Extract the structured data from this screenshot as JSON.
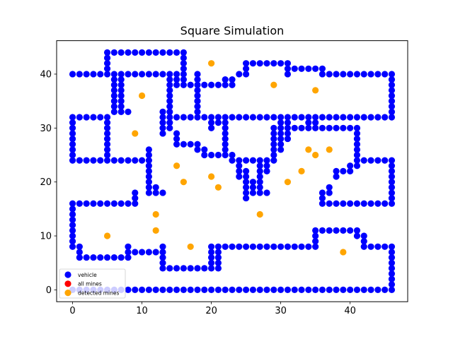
{
  "chart_data": {
    "type": "scatter",
    "title": "Square Simulation",
    "xlabel": "",
    "ylabel": "",
    "xlim": [
      -2.3,
      48.3
    ],
    "ylim": [
      -2.2,
      46.2
    ],
    "xticks": [
      0,
      10,
      20,
      30,
      40
    ],
    "yticks": [
      0,
      10,
      20,
      30,
      40
    ],
    "grid": false,
    "legend_position": "lower-left",
    "colors": {
      "vehicle": "#0000ff",
      "all_mines": "#ff0000",
      "detected_mines": "#ffa500"
    },
    "series": [
      {
        "name": "vehicle",
        "segments": [
          [
            [
              0,
              40
            ],
            [
              5,
              40
            ]
          ],
          [
            [
              5,
              40
            ],
            [
              5,
              44
            ]
          ],
          [
            [
              5,
              44
            ],
            [
              16,
              44
            ]
          ],
          [
            [
              16,
              44
            ],
            [
              16,
              38
            ]
          ],
          [
            [
              7,
              40
            ],
            [
              15,
              40
            ]
          ],
          [
            [
              15,
              40
            ],
            [
              15,
              38
            ]
          ],
          [
            [
              14,
              40
            ],
            [
              14,
              30
            ]
          ],
          [
            [
              16,
              38
            ],
            [
              18,
              38
            ]
          ],
          [
            [
              18,
              40
            ],
            [
              18,
              32
            ]
          ],
          [
            [
              18,
              38
            ],
            [
              23,
              38
            ]
          ],
          [
            [
              22,
              38
            ],
            [
              22,
              39
            ]
          ],
          [
            [
              23,
              39
            ],
            [
              24,
              40
            ]
          ],
          [
            [
              24,
              40
            ],
            [
              25,
              40
            ]
          ],
          [
            [
              25,
              40
            ],
            [
              25,
              42
            ]
          ],
          [
            [
              25,
              42
            ],
            [
              31,
              42
            ]
          ],
          [
            [
              31,
              42
            ],
            [
              31,
              40
            ]
          ],
          [
            [
              31,
              41
            ],
            [
              36,
              41
            ]
          ],
          [
            [
              36,
              41
            ],
            [
              36,
              40
            ]
          ],
          [
            [
              36,
              40
            ],
            [
              46,
              40
            ]
          ],
          [
            [
              46,
              40
            ],
            [
              46,
              32
            ]
          ],
          [
            [
              0,
              32
            ],
            [
              4,
              32
            ]
          ],
          [
            [
              0,
              32
            ],
            [
              0,
              24
            ]
          ],
          [
            [
              0,
              24
            ],
            [
              5,
              24
            ]
          ],
          [
            [
              5,
              24
            ],
            [
              11,
              24
            ]
          ],
          [
            [
              5,
              32
            ],
            [
              5,
              24
            ]
          ],
          [
            [
              6,
              40
            ],
            [
              6,
              33
            ]
          ],
          [
            [
              7,
              40
            ],
            [
              7,
              33
            ]
          ],
          [
            [
              6,
              33
            ],
            [
              8,
              33
            ]
          ],
          [
            [
              7,
              40
            ],
            [
              7,
              39
            ]
          ],
          [
            [
              11,
              26
            ],
            [
              11,
              18
            ]
          ],
          [
            [
              11,
              18
            ],
            [
              13,
              18
            ]
          ],
          [
            [
              12,
              18
            ],
            [
              12,
              19
            ]
          ],
          [
            [
              9,
              18
            ],
            [
              9,
              16
            ]
          ],
          [
            [
              0,
              16
            ],
            [
              9,
              16
            ]
          ],
          [
            [
              0,
              16
            ],
            [
              0,
              8
            ]
          ],
          [
            [
              0,
              8
            ],
            [
              1,
              8
            ]
          ],
          [
            [
              1,
              8
            ],
            [
              1,
              6
            ]
          ],
          [
            [
              1,
              6
            ],
            [
              7,
              6
            ]
          ],
          [
            [
              8,
              6
            ],
            [
              8,
              8
            ]
          ],
          [
            [
              8,
              7
            ],
            [
              12,
              7
            ]
          ],
          [
            [
              13,
              8
            ],
            [
              13,
              4
            ]
          ],
          [
            [
              13,
              4
            ],
            [
              20,
              4
            ]
          ],
          [
            [
              20,
              4
            ],
            [
              20,
              8
            ]
          ],
          [
            [
              21,
              8
            ],
            [
              21,
              4
            ]
          ],
          [
            [
              21,
              8
            ],
            [
              35,
              8
            ]
          ],
          [
            [
              35,
              8
            ],
            [
              35,
              11
            ]
          ],
          [
            [
              35,
              11
            ],
            [
              41,
              11
            ]
          ],
          [
            [
              41,
              11
            ],
            [
              41,
              10
            ]
          ],
          [
            [
              42,
              10
            ],
            [
              42,
              8
            ]
          ],
          [
            [
              42,
              8
            ],
            [
              46,
              8
            ]
          ],
          [
            [
              46,
              8
            ],
            [
              46,
              0
            ]
          ],
          [
            [
              0,
              0
            ],
            [
              46,
              0
            ]
          ],
          [
            [
              13,
              33
            ],
            [
              13,
              29
            ]
          ],
          [
            [
              14,
              32
            ],
            [
              46,
              32
            ]
          ],
          [
            [
              20,
              32
            ],
            [
              20,
              30
            ]
          ],
          [
            [
              21,
              31
            ],
            [
              22,
              31
            ]
          ],
          [
            [
              22,
              30
            ],
            [
              22,
              25
            ]
          ],
          [
            [
              15,
              29
            ],
            [
              15,
              27
            ]
          ],
          [
            [
              15,
              27
            ],
            [
              18,
              27
            ]
          ],
          [
            [
              18,
              27
            ],
            [
              18,
              26
            ]
          ],
          [
            [
              19,
              26
            ],
            [
              19,
              25
            ]
          ],
          [
            [
              20,
              25
            ],
            [
              22,
              25
            ]
          ],
          [
            [
              23,
              25
            ],
            [
              23,
              24
            ]
          ],
          [
            [
              24,
              24
            ],
            [
              24,
              21
            ]
          ],
          [
            [
              25,
              24
            ],
            [
              28,
              24
            ]
          ],
          [
            [
              25,
              22
            ],
            [
              25,
              17
            ]
          ],
          [
            [
              26,
              20
            ],
            [
              26,
              18
            ]
          ],
          [
            [
              26,
              18
            ],
            [
              28,
              18
            ]
          ],
          [
            [
              27,
              23
            ],
            [
              27,
              18
            ]
          ],
          [
            [
              28,
              24
            ],
            [
              28,
              22
            ]
          ],
          [
            [
              29,
              24
            ],
            [
              29,
              26
            ]
          ],
          [
            [
              29,
              30
            ],
            [
              29,
              24
            ]
          ],
          [
            [
              30,
              31
            ],
            [
              30,
              26
            ]
          ],
          [
            [
              30,
              30
            ],
            [
              41,
              30
            ]
          ],
          [
            [
              31,
              31
            ],
            [
              31,
              28
            ]
          ],
          [
            [
              34,
              31
            ],
            [
              34,
              30
            ]
          ],
          [
            [
              35,
              31
            ],
            [
              35,
              30
            ]
          ],
          [
            [
              41,
              30
            ],
            [
              41,
              24
            ]
          ],
          [
            [
              42,
              24
            ],
            [
              46,
              24
            ]
          ],
          [
            [
              46,
              24
            ],
            [
              46,
              16
            ]
          ],
          [
            [
              36,
              16
            ],
            [
              46,
              16
            ]
          ],
          [
            [
              36,
              16
            ],
            [
              36,
              18
            ]
          ],
          [
            [
              37,
              18
            ],
            [
              37,
              19
            ]
          ],
          [
            [
              38,
              21
            ],
            [
              38,
              22
            ]
          ],
          [
            [
              39,
              22
            ],
            [
              40,
              22
            ]
          ],
          [
            [
              40,
              23
            ],
            [
              41,
              23
            ]
          ]
        ]
      },
      {
        "name": "all mines",
        "points": []
      },
      {
        "name": "detected mines",
        "points": [
          [
            5,
            10
          ],
          [
            9,
            29
          ],
          [
            10,
            36
          ],
          [
            12,
            14
          ],
          [
            12,
            11
          ],
          [
            15,
            23
          ],
          [
            16,
            20
          ],
          [
            17,
            8
          ],
          [
            20,
            42
          ],
          [
            20,
            21
          ],
          [
            21,
            19
          ],
          [
            27,
            14
          ],
          [
            29,
            38
          ],
          [
            31,
            20
          ],
          [
            33,
            22
          ],
          [
            34,
            26
          ],
          [
            35,
            37
          ],
          [
            35,
            25
          ],
          [
            37,
            26
          ],
          [
            39,
            7
          ]
        ]
      }
    ]
  }
}
